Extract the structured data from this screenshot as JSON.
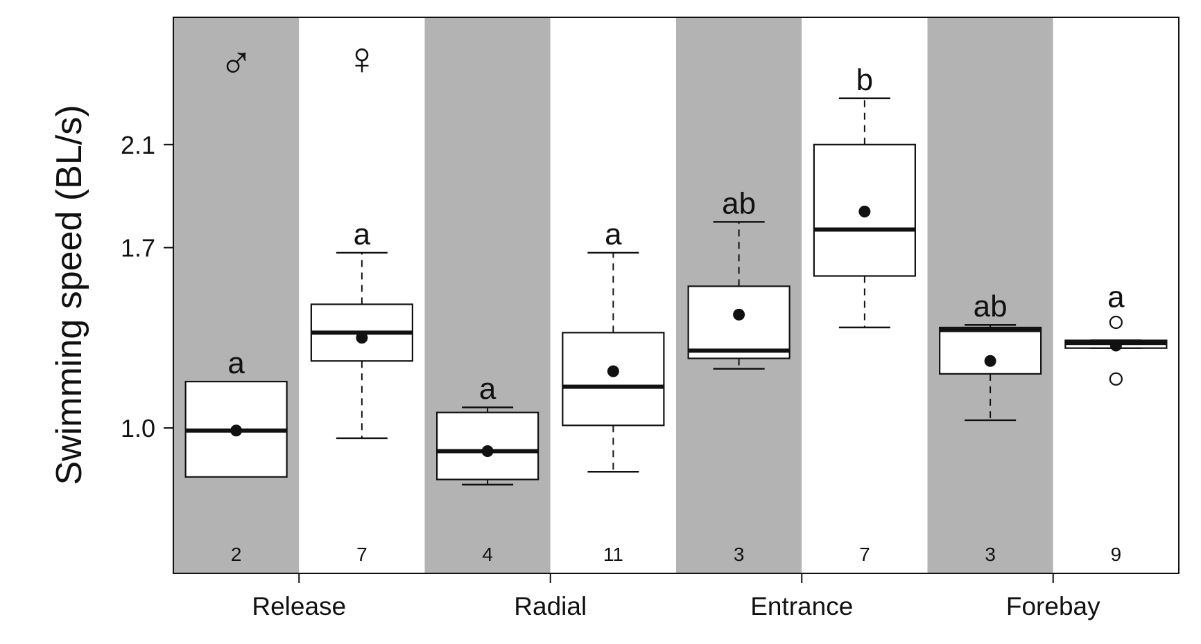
{
  "chart_data": {
    "type": "box",
    "ylabel": "Swimming speed (BL/s)",
    "yticks": [
      1.0,
      1.7,
      2.1
    ],
    "ytick_labels": [
      "1.0",
      "1.7",
      "2.1"
    ],
    "ylim": [
      0.6,
      2.45
    ],
    "categories": [
      "Release",
      "Radial",
      "Entrance",
      "Forebay"
    ],
    "groups": [
      "male",
      "female"
    ],
    "group_symbols": [
      "♂",
      "♀"
    ],
    "colors": {
      "male_band": "#b3b3b3",
      "female_band": "#ffffff",
      "box_fill": "#ffffff",
      "ink": "#111111"
    },
    "boxes": [
      {
        "category": "Release",
        "group": "male",
        "whisker_low": null,
        "q1": 0.81,
        "median": 0.99,
        "q3": 1.18,
        "whisker_high": null,
        "mean": 0.99,
        "outliers": [],
        "n": "2",
        "letter": "a"
      },
      {
        "category": "Release",
        "group": "female",
        "whisker_low": 0.96,
        "q1": 1.26,
        "median": 1.37,
        "q3": 1.48,
        "whisker_high": 1.68,
        "mean": 1.35,
        "outliers": [],
        "n": "7",
        "letter": "a"
      },
      {
        "category": "Radial",
        "group": "male",
        "whisker_low": 0.78,
        "q1": 0.8,
        "median": 0.91,
        "q3": 1.06,
        "whisker_high": 1.08,
        "mean": 0.91,
        "outliers": [],
        "n": "4",
        "letter": "a"
      },
      {
        "category": "Radial",
        "group": "female",
        "whisker_low": 0.83,
        "q1": 1.01,
        "median": 1.16,
        "q3": 1.37,
        "whisker_high": 1.68,
        "mean": 1.22,
        "outliers": [],
        "n": "11",
        "letter": "a"
      },
      {
        "category": "Entrance",
        "group": "male",
        "whisker_low": 1.23,
        "q1": 1.27,
        "median": 1.3,
        "q3": 1.55,
        "whisker_high": 1.8,
        "mean": 1.44,
        "outliers": [],
        "n": "3",
        "letter": "ab"
      },
      {
        "category": "Entrance",
        "group": "female",
        "whisker_low": 1.39,
        "q1": 1.59,
        "median": 1.77,
        "q3": 2.1,
        "whisker_high": 2.28,
        "mean": 1.84,
        "outliers": [],
        "n": "7",
        "letter": "b"
      },
      {
        "category": "Forebay",
        "group": "male",
        "whisker_low": 1.03,
        "q1": 1.21,
        "median": 1.38,
        "q3": 1.39,
        "whisker_high": 1.4,
        "mean": 1.26,
        "outliers": [],
        "n": "3",
        "letter": "ab"
      },
      {
        "category": "Forebay",
        "group": "female",
        "whisker_low": 1.31,
        "q1": 1.31,
        "median": 1.33,
        "q3": 1.34,
        "whisker_high": 1.34,
        "mean": 1.32,
        "outliers": [
          1.41,
          1.19
        ],
        "n": "9",
        "letter": "a"
      }
    ]
  }
}
